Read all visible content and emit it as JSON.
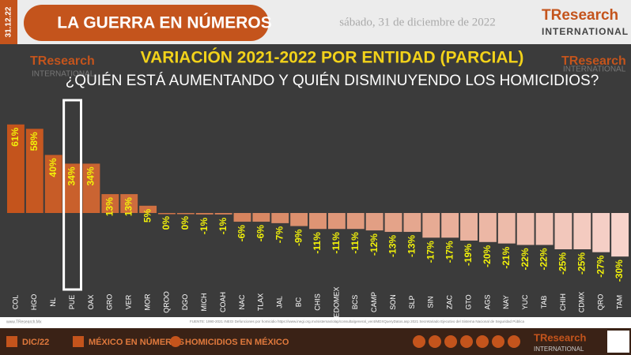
{
  "header": {
    "date_badge": "31.12.22",
    "section": "LA GUERRA EN NÚMEROS",
    "date": "sábado, 31 de diciembre de 2022",
    "brand": "TResearch",
    "brand_sub": "INTERNATIONAL"
  },
  "chart_data": {
    "type": "bar",
    "title": "VARIACIÓN 2021-2022 POR ENTIDAD (PARCIAL)",
    "subtitle": "¿QUIÉN ESTÁ AUMENTANDO Y QUIÉN DISMINUYENDO LOS HOMICIDIOS?",
    "categories": [
      "COL",
      "HGO",
      "NL",
      "PUE",
      "OAX",
      "GRO",
      "VER",
      "MOR",
      "QROO",
      "DGO",
      "MICH",
      "COAH",
      "NAC",
      "TLAX",
      "JAL",
      "BC",
      "CHIS",
      "EDOMEX",
      "BCS",
      "CAMP",
      "SON",
      "SLP",
      "SIN",
      "ZAC",
      "GTO",
      "AGS",
      "NAY",
      "YUC",
      "TAB",
      "CHIH",
      "CDMX",
      "QRO",
      "TAM"
    ],
    "values": [
      61,
      58,
      40,
      34,
      34,
      13,
      13,
      5,
      0,
      0,
      -1,
      -1,
      -6,
      -6,
      -7,
      -9,
      -11,
      -11,
      -11,
      -12,
      -13,
      -13,
      -17,
      -17,
      -19,
      -20,
      -21,
      -22,
      -22,
      -25,
      -25,
      -27,
      -30
    ],
    "value_labels": [
      "61%",
      "58%",
      "40%",
      "34%",
      "34%",
      "13%",
      "13%",
      "5%",
      "0%",
      "0%",
      "-1%",
      "-1%",
      "-6%",
      "-6%",
      "-7%",
      "-9%",
      "-11%",
      "-11%",
      "-11%",
      "-12%",
      "-13%",
      "-13%",
      "-17%",
      "-17%",
      "-19%",
      "-20%",
      "-21%",
      "-22%",
      "-22%",
      "-25%",
      "-25%",
      "-27%",
      "-30%"
    ],
    "color_scale": [
      "#c4541c",
      "#f7d3cb"
    ],
    "label_color": "#f2f20a",
    "highlight_index": 3
  },
  "footer": {
    "site": "www.TResearch.Mx",
    "source": "FUENTE: 1990-2021 INEGI Defunciones por homicidio https://www.inegi.org.mx/sistemas/olap/consulta/general_ver4/MDXQueryDatos.asp 2021 Secretariado Ejecutivo del Sistema Nacional de Seguridad Pública",
    "items": [
      "DIC/22",
      "MÉXICO EN NÚMEROS",
      "HOMICIDIOS EN MÉXICO"
    ]
  }
}
